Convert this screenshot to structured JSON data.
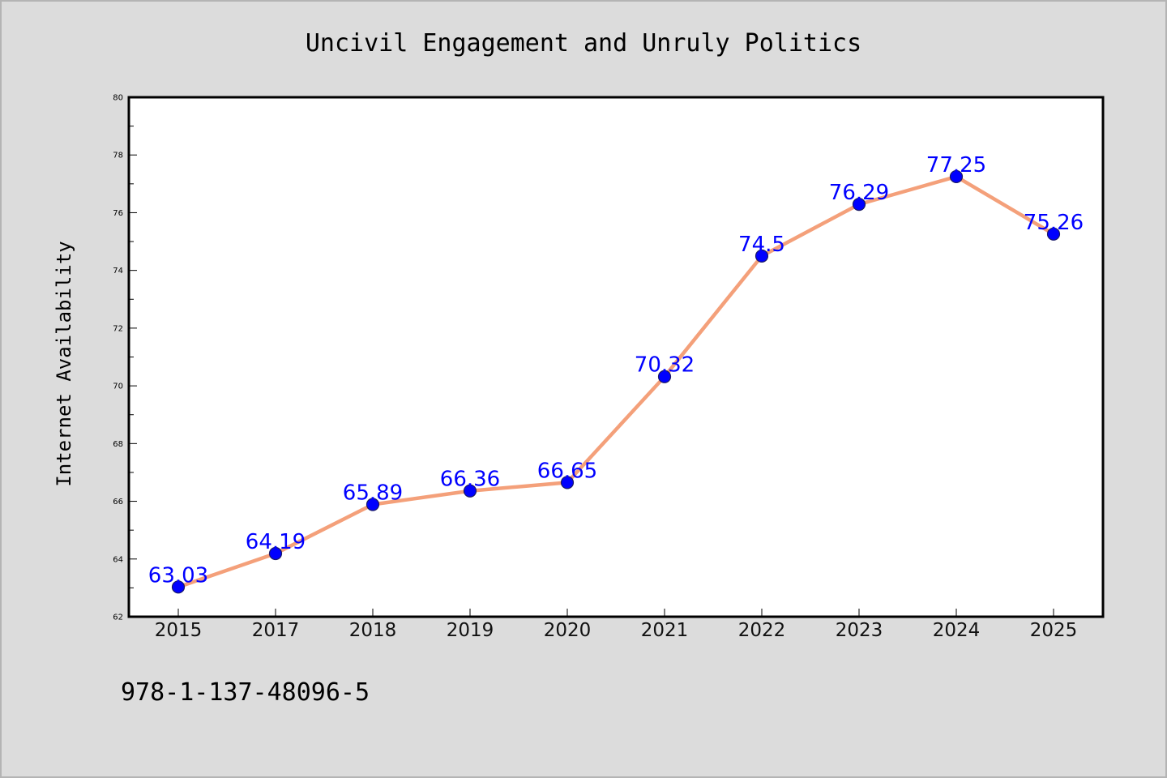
{
  "chart_data": {
    "type": "line",
    "title": "Uncivil Engagement and Unruly Politics",
    "xlabel": "",
    "ylabel": "Internet Availability",
    "categories": [
      "2015",
      "2017",
      "2018",
      "2019",
      "2020",
      "2021",
      "2022",
      "2023",
      "2024",
      "2025"
    ],
    "series": [
      {
        "values": [
          63.03,
          64.19,
          65.89,
          66.36,
          66.65,
          70.32,
          74.5,
          76.29,
          77.25,
          75.26
        ],
        "labels": [
          "63.03",
          "64.19",
          "65.89",
          "66.36",
          "66.65",
          "70.32",
          "74.5",
          "76.29",
          "77.25",
          "75.26"
        ]
      }
    ],
    "ylim": [
      62,
      80
    ],
    "yticks": [
      "62",
      "64",
      "66",
      "68",
      "70",
      "72",
      "74",
      "76",
      "78",
      "80"
    ],
    "grid": false,
    "colors": {
      "line": "#f4a07a",
      "marker": "#0000ff",
      "marker_edge": "#1a1a66",
      "data_label": "#0000ff",
      "plot_background": "#ffffff",
      "figure_background": "#dcdcdc"
    }
  },
  "footer": {
    "text": "978-1-137-48096-5"
  }
}
